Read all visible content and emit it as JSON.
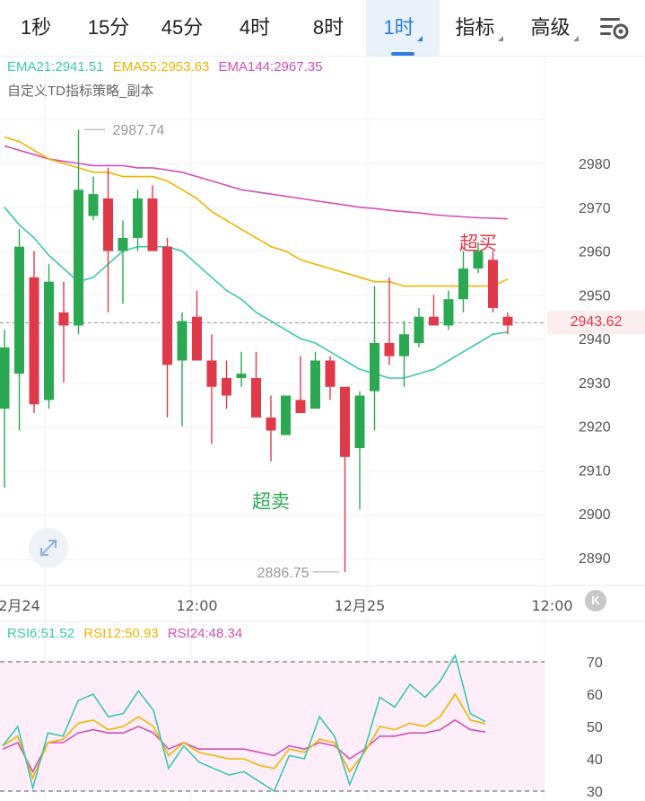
{
  "tabs": [
    {
      "label": "1秒",
      "active": false
    },
    {
      "label": "15分",
      "active": false
    },
    {
      "label": "45分",
      "active": false
    },
    {
      "label": "4时",
      "active": false
    },
    {
      "label": "8时",
      "active": false
    },
    {
      "label": "1时",
      "active": true,
      "dropdown": true
    },
    {
      "label": "指标",
      "active": false,
      "dropdown": true
    },
    {
      "label": "高级",
      "active": false,
      "dropdown": true
    }
  ],
  "settings_icon": "chart-settings-icon",
  "ema_legend": {
    "ema21": "EMA21:2941.51",
    "ema55": "EMA55:2953.63",
    "ema144": "EMA144:2967.35"
  },
  "strategy_label": "自定义TD指标策略_副本",
  "rsi_legend": {
    "rsi6": "RSI6:51.52",
    "rsi12": "RSI12:50.93",
    "rsi24": "RSI24:48.34"
  },
  "current_price": "2943.62",
  "k_badge": "K",
  "colors": {
    "up": "#2aa952",
    "down": "#e0394a",
    "ema21": "#3cc7b0",
    "ema55": "#f0b400",
    "ema144": "#d050b8",
    "rsi6": "#3cc7b0",
    "rsi12": "#f0b400",
    "rsi24": "#d050b8",
    "accent": "#2f7de1"
  },
  "chart_data": [
    {
      "type": "candlestick",
      "y_ticks": [
        2980,
        2970,
        2960,
        2950,
        2940,
        2930,
        2920,
        2910,
        2900,
        2890
      ],
      "ylim": [
        2882,
        2989
      ],
      "x_tick_labels": [
        "2月24",
        "12:00",
        "12月25",
        "12:00"
      ],
      "x_tick_candle_index": [
        1,
        13,
        24,
        37
      ],
      "current_price": 2943.62,
      "max_label": "2987.74",
      "max_value": 2987.74,
      "max_candle_index": 5,
      "min_label": "2886.75",
      "min_value": 2886.75,
      "min_candle_index": 23,
      "annotations": [
        {
          "text": "超买",
          "candle_index": 32,
          "value": 2962,
          "kind": "overbought"
        },
        {
          "text": "超卖",
          "candle_index": 18,
          "value": 2903,
          "kind": "oversold"
        }
      ],
      "candles": [
        {
          "o": 2924,
          "c": 2938,
          "h": 2942,
          "l": 2906
        },
        {
          "o": 2932,
          "c": 2961,
          "h": 2965,
          "l": 2919
        },
        {
          "o": 2954,
          "c": 2925,
          "h": 2960,
          "l": 2923
        },
        {
          "o": 2926,
          "c": 2953,
          "h": 2957,
          "l": 2924
        },
        {
          "o": 2946,
          "c": 2943,
          "h": 2953,
          "l": 2930
        },
        {
          "o": 2943,
          "c": 2974,
          "h": 2987.7,
          "l": 2941
        },
        {
          "o": 2968,
          "c": 2973,
          "h": 2977,
          "l": 2967
        },
        {
          "o": 2972,
          "c": 2960,
          "h": 2979,
          "l": 2946
        },
        {
          "o": 2960,
          "c": 2963,
          "h": 2967,
          "l": 2948
        },
        {
          "o": 2963,
          "c": 2972,
          "h": 2974,
          "l": 2960
        },
        {
          "o": 2972,
          "c": 2960,
          "h": 2975,
          "l": 2960
        },
        {
          "o": 2961,
          "c": 2934,
          "h": 2963,
          "l": 2922
        },
        {
          "o": 2935,
          "c": 2944,
          "h": 2946,
          "l": 2920
        },
        {
          "o": 2945,
          "c": 2935,
          "h": 2951,
          "l": 2935
        },
        {
          "o": 2935,
          "c": 2929,
          "h": 2941,
          "l": 2916
        },
        {
          "o": 2931,
          "c": 2927,
          "h": 2935,
          "l": 2924
        },
        {
          "o": 2931,
          "c": 2932,
          "h": 2937,
          "l": 2929
        },
        {
          "o": 2931,
          "c": 2922,
          "h": 2937,
          "l": 2922
        },
        {
          "o": 2922,
          "c": 2919,
          "h": 2927,
          "l": 2912
        },
        {
          "o": 2918,
          "c": 2927,
          "h": 2927,
          "l": 2918
        },
        {
          "o": 2926,
          "c": 2923,
          "h": 2936,
          "l": 2923
        },
        {
          "o": 2924,
          "c": 2935,
          "h": 2937,
          "l": 2924
        },
        {
          "o": 2935,
          "c": 2929,
          "h": 2936,
          "l": 2926
        },
        {
          "o": 2929,
          "c": 2913,
          "h": 2928,
          "l": 2886.75
        },
        {
          "o": 2915,
          "c": 2927,
          "h": 2928,
          "l": 2901
        },
        {
          "o": 2928,
          "c": 2939,
          "h": 2952,
          "l": 2919
        },
        {
          "o": 2939,
          "c": 2936,
          "h": 2954,
          "l": 2934
        },
        {
          "o": 2936,
          "c": 2941,
          "h": 2944,
          "l": 2929
        },
        {
          "o": 2939,
          "c": 2945,
          "h": 2947,
          "l": 2938
        },
        {
          "o": 2945,
          "c": 2943,
          "h": 2950,
          "l": 2943
        },
        {
          "o": 2943,
          "c": 2949,
          "h": 2951,
          "l": 2942
        },
        {
          "o": 2949,
          "c": 2956,
          "h": 2960,
          "l": 2946
        },
        {
          "o": 2956,
          "c": 2960,
          "h": 2962,
          "l": 2955
        },
        {
          "o": 2958,
          "c": 2947,
          "h": 2960,
          "l": 2946
        },
        {
          "o": 2945,
          "c": 2943,
          "h": 2946,
          "l": 2941
        }
      ],
      "ema21": [
        2970,
        2966,
        2963,
        2959,
        2956,
        2953,
        2954,
        2957,
        2960,
        2961,
        2961,
        2961,
        2960,
        2957,
        2954,
        2951,
        2949,
        2946,
        2944,
        2942,
        2940,
        2939,
        2937,
        2935,
        2933,
        2932,
        2931,
        2931,
        2932,
        2933,
        2935,
        2937,
        2939,
        2941,
        2941.5
      ],
      "ema55": [
        2986,
        2985,
        2983,
        2981,
        2980,
        2979,
        2978,
        2978,
        2977,
        2977,
        2977,
        2976,
        2974,
        2972,
        2969,
        2967,
        2965,
        2963,
        2961,
        2960,
        2958,
        2957,
        2956,
        2955,
        2954,
        2953,
        2953,
        2952,
        2952,
        2952,
        2952,
        2952,
        2952,
        2952,
        2953.6
      ],
      "ema144": [
        2984,
        2983,
        2982,
        2981,
        2980.5,
        2980,
        2979.5,
        2979.5,
        2979.5,
        2979,
        2979,
        2978.5,
        2978,
        2977,
        2976,
        2975,
        2974,
        2973.5,
        2973,
        2972.5,
        2972,
        2971.5,
        2971,
        2970.5,
        2970,
        2969.7,
        2969.3,
        2969,
        2968.7,
        2968.3,
        2968,
        2967.8,
        2967.6,
        2967.5,
        2967.35
      ]
    },
    {
      "type": "line",
      "title": "RSI",
      "y_ticks": [
        70,
        60,
        50,
        40,
        30
      ],
      "ylim": [
        29,
        73
      ],
      "overbought": 70,
      "oversold": 30,
      "series": [
        {
          "name": "RSI6",
          "values": [
            44,
            50,
            31,
            48,
            47,
            58,
            60,
            53,
            54,
            61,
            55,
            37,
            44,
            39,
            37,
            35,
            36,
            33,
            30,
            41,
            40,
            53,
            47,
            32,
            43,
            59,
            56,
            63,
            59,
            64,
            72,
            54,
            51.5
          ]
        },
        {
          "name": "RSI12",
          "values": [
            44,
            47,
            34,
            45,
            46,
            51,
            52,
            49,
            50,
            53,
            50,
            41,
            45,
            42,
            41,
            40,
            40,
            38,
            37,
            43,
            42,
            46,
            45,
            36,
            42,
            50,
            49,
            51,
            50,
            53,
            60,
            52,
            50.9
          ]
        },
        {
          "name": "RSI24",
          "values": [
            43,
            45,
            36,
            45,
            45,
            48,
            49,
            48,
            48,
            50,
            48,
            43,
            45,
            43,
            43,
            43,
            43,
            42,
            41,
            44,
            43,
            45,
            44,
            40,
            43,
            47,
            47,
            48,
            48,
            49,
            52,
            49,
            48.3
          ]
        }
      ]
    }
  ]
}
